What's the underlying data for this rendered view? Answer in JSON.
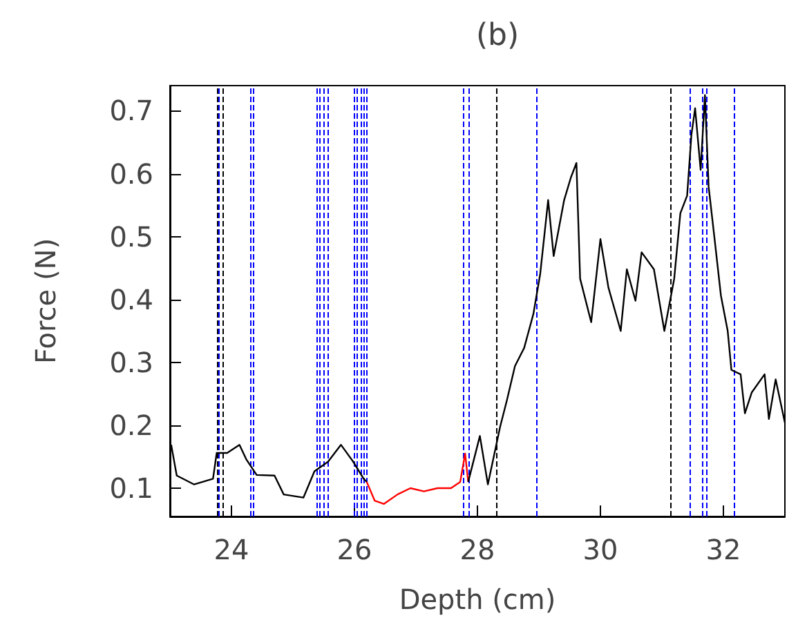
{
  "chart_data": {
    "type": "line",
    "title": "(b)",
    "xlabel": "Depth (cm)",
    "ylabel": "Force (N)",
    "xlim": [
      23,
      33
    ],
    "xticks": [
      24,
      26,
      28,
      30,
      32
    ],
    "ylim": [
      0.055,
      0.74
    ],
    "yticks": [
      0.1,
      0.2,
      0.3,
      0.4,
      0.5,
      0.6,
      0.7
    ],
    "grid": false,
    "marker": "none",
    "line_style": "solid",
    "series": [
      {
        "color": "#000000",
        "x": [
          23.02,
          23.11,
          23.39,
          23.7,
          23.76,
          23.93,
          24.13,
          24.24,
          24.41,
          24.7,
          24.85,
          25.17,
          25.35,
          25.57,
          25.78,
          25.98,
          26.15,
          26.2
        ],
        "values": [
          0.169,
          0.12,
          0.106,
          0.115,
          0.156,
          0.156,
          0.169,
          0.146,
          0.121,
          0.12,
          0.09,
          0.085,
          0.127,
          0.142,
          0.169,
          0.142,
          0.115,
          0.11
        ]
      },
      {
        "color": "#ff0000",
        "x": [
          26.2,
          26.33,
          26.48,
          26.7,
          26.91,
          27.13,
          27.35,
          27.57,
          27.72,
          27.8,
          27.85
        ],
        "values": [
          0.11,
          0.08,
          0.075,
          0.09,
          0.1,
          0.095,
          0.1,
          0.1,
          0.11,
          0.155,
          0.11
        ]
      },
      {
        "color": "#000000",
        "x": [
          27.85,
          28.04,
          28.17,
          28.37,
          28.48,
          28.61,
          28.76,
          28.91,
          29.02,
          29.15,
          29.24,
          29.41,
          29.52,
          29.61,
          29.67,
          29.85,
          30.0,
          30.13,
          30.33,
          30.43,
          30.57,
          30.67,
          30.87,
          31.04,
          31.2,
          31.3,
          31.41,
          31.48,
          31.54,
          31.63,
          31.7,
          31.76,
          31.85,
          31.96,
          32.07,
          32.13,
          32.28,
          32.35,
          32.46,
          32.67,
          32.74,
          32.85,
          33.0
        ],
        "values": [
          0.11,
          0.183,
          0.106,
          0.198,
          0.24,
          0.294,
          0.323,
          0.377,
          0.44,
          0.558,
          0.469,
          0.558,
          0.594,
          0.617,
          0.433,
          0.364,
          0.496,
          0.419,
          0.35,
          0.448,
          0.398,
          0.475,
          0.448,
          0.35,
          0.433,
          0.537,
          0.565,
          0.662,
          0.704,
          0.606,
          0.725,
          0.579,
          0.502,
          0.406,
          0.35,
          0.288,
          0.281,
          0.219,
          0.252,
          0.281,
          0.21,
          0.273,
          0.204
        ]
      }
    ],
    "ref_lines": [
      {
        "axis": "x",
        "value": 23.76,
        "color": "#000000",
        "line_style": "dashed"
      },
      {
        "axis": "x",
        "value": 23.8,
        "color": "#0000ff",
        "line_style": "dashed"
      },
      {
        "axis": "x",
        "value": 23.85,
        "color": "#000000",
        "line_style": "dashed"
      },
      {
        "axis": "x",
        "value": 24.3,
        "color": "#0000ff",
        "line_style": "dashed"
      },
      {
        "axis": "x",
        "value": 24.35,
        "color": "#0000ff",
        "line_style": "dashed"
      },
      {
        "axis": "x",
        "value": 25.38,
        "color": "#0000ff",
        "line_style": "dashed"
      },
      {
        "axis": "x",
        "value": 25.43,
        "color": "#0000ff",
        "line_style": "dashed"
      },
      {
        "axis": "x",
        "value": 25.49,
        "color": "#0000ff",
        "line_style": "dashed"
      },
      {
        "axis": "x",
        "value": 25.57,
        "color": "#0000ff",
        "line_style": "dashed"
      },
      {
        "axis": "x",
        "value": 26.0,
        "color": "#0000ff",
        "line_style": "dashed"
      },
      {
        "axis": "x",
        "value": 26.05,
        "color": "#0000ff",
        "line_style": "dashed"
      },
      {
        "axis": "x",
        "value": 26.11,
        "color": "#0000ff",
        "line_style": "dashed"
      },
      {
        "axis": "x",
        "value": 26.15,
        "color": "#0000ff",
        "line_style": "dashed"
      },
      {
        "axis": "x",
        "value": 26.2,
        "color": "#0000ff",
        "line_style": "dashed"
      },
      {
        "axis": "x",
        "value": 27.78,
        "color": "#0000ff",
        "line_style": "dashed"
      },
      {
        "axis": "x",
        "value": 27.85,
        "color": "#0000ff",
        "line_style": "dashed"
      },
      {
        "axis": "x",
        "value": 28.3,
        "color": "#000000",
        "line_style": "dashed"
      },
      {
        "axis": "x",
        "value": 28.97,
        "color": "#0000ff",
        "line_style": "dashed"
      },
      {
        "axis": "x",
        "value": 31.13,
        "color": "#000000",
        "line_style": "dashed"
      },
      {
        "axis": "x",
        "value": 31.45,
        "color": "#0000ff",
        "line_style": "dashed"
      },
      {
        "axis": "x",
        "value": 31.65,
        "color": "#0000ff",
        "line_style": "dashed"
      },
      {
        "axis": "x",
        "value": 31.72,
        "color": "#0000ff",
        "line_style": "dashed"
      },
      {
        "axis": "x",
        "value": 32.17,
        "color": "#0000ff",
        "line_style": "dashed"
      }
    ]
  }
}
